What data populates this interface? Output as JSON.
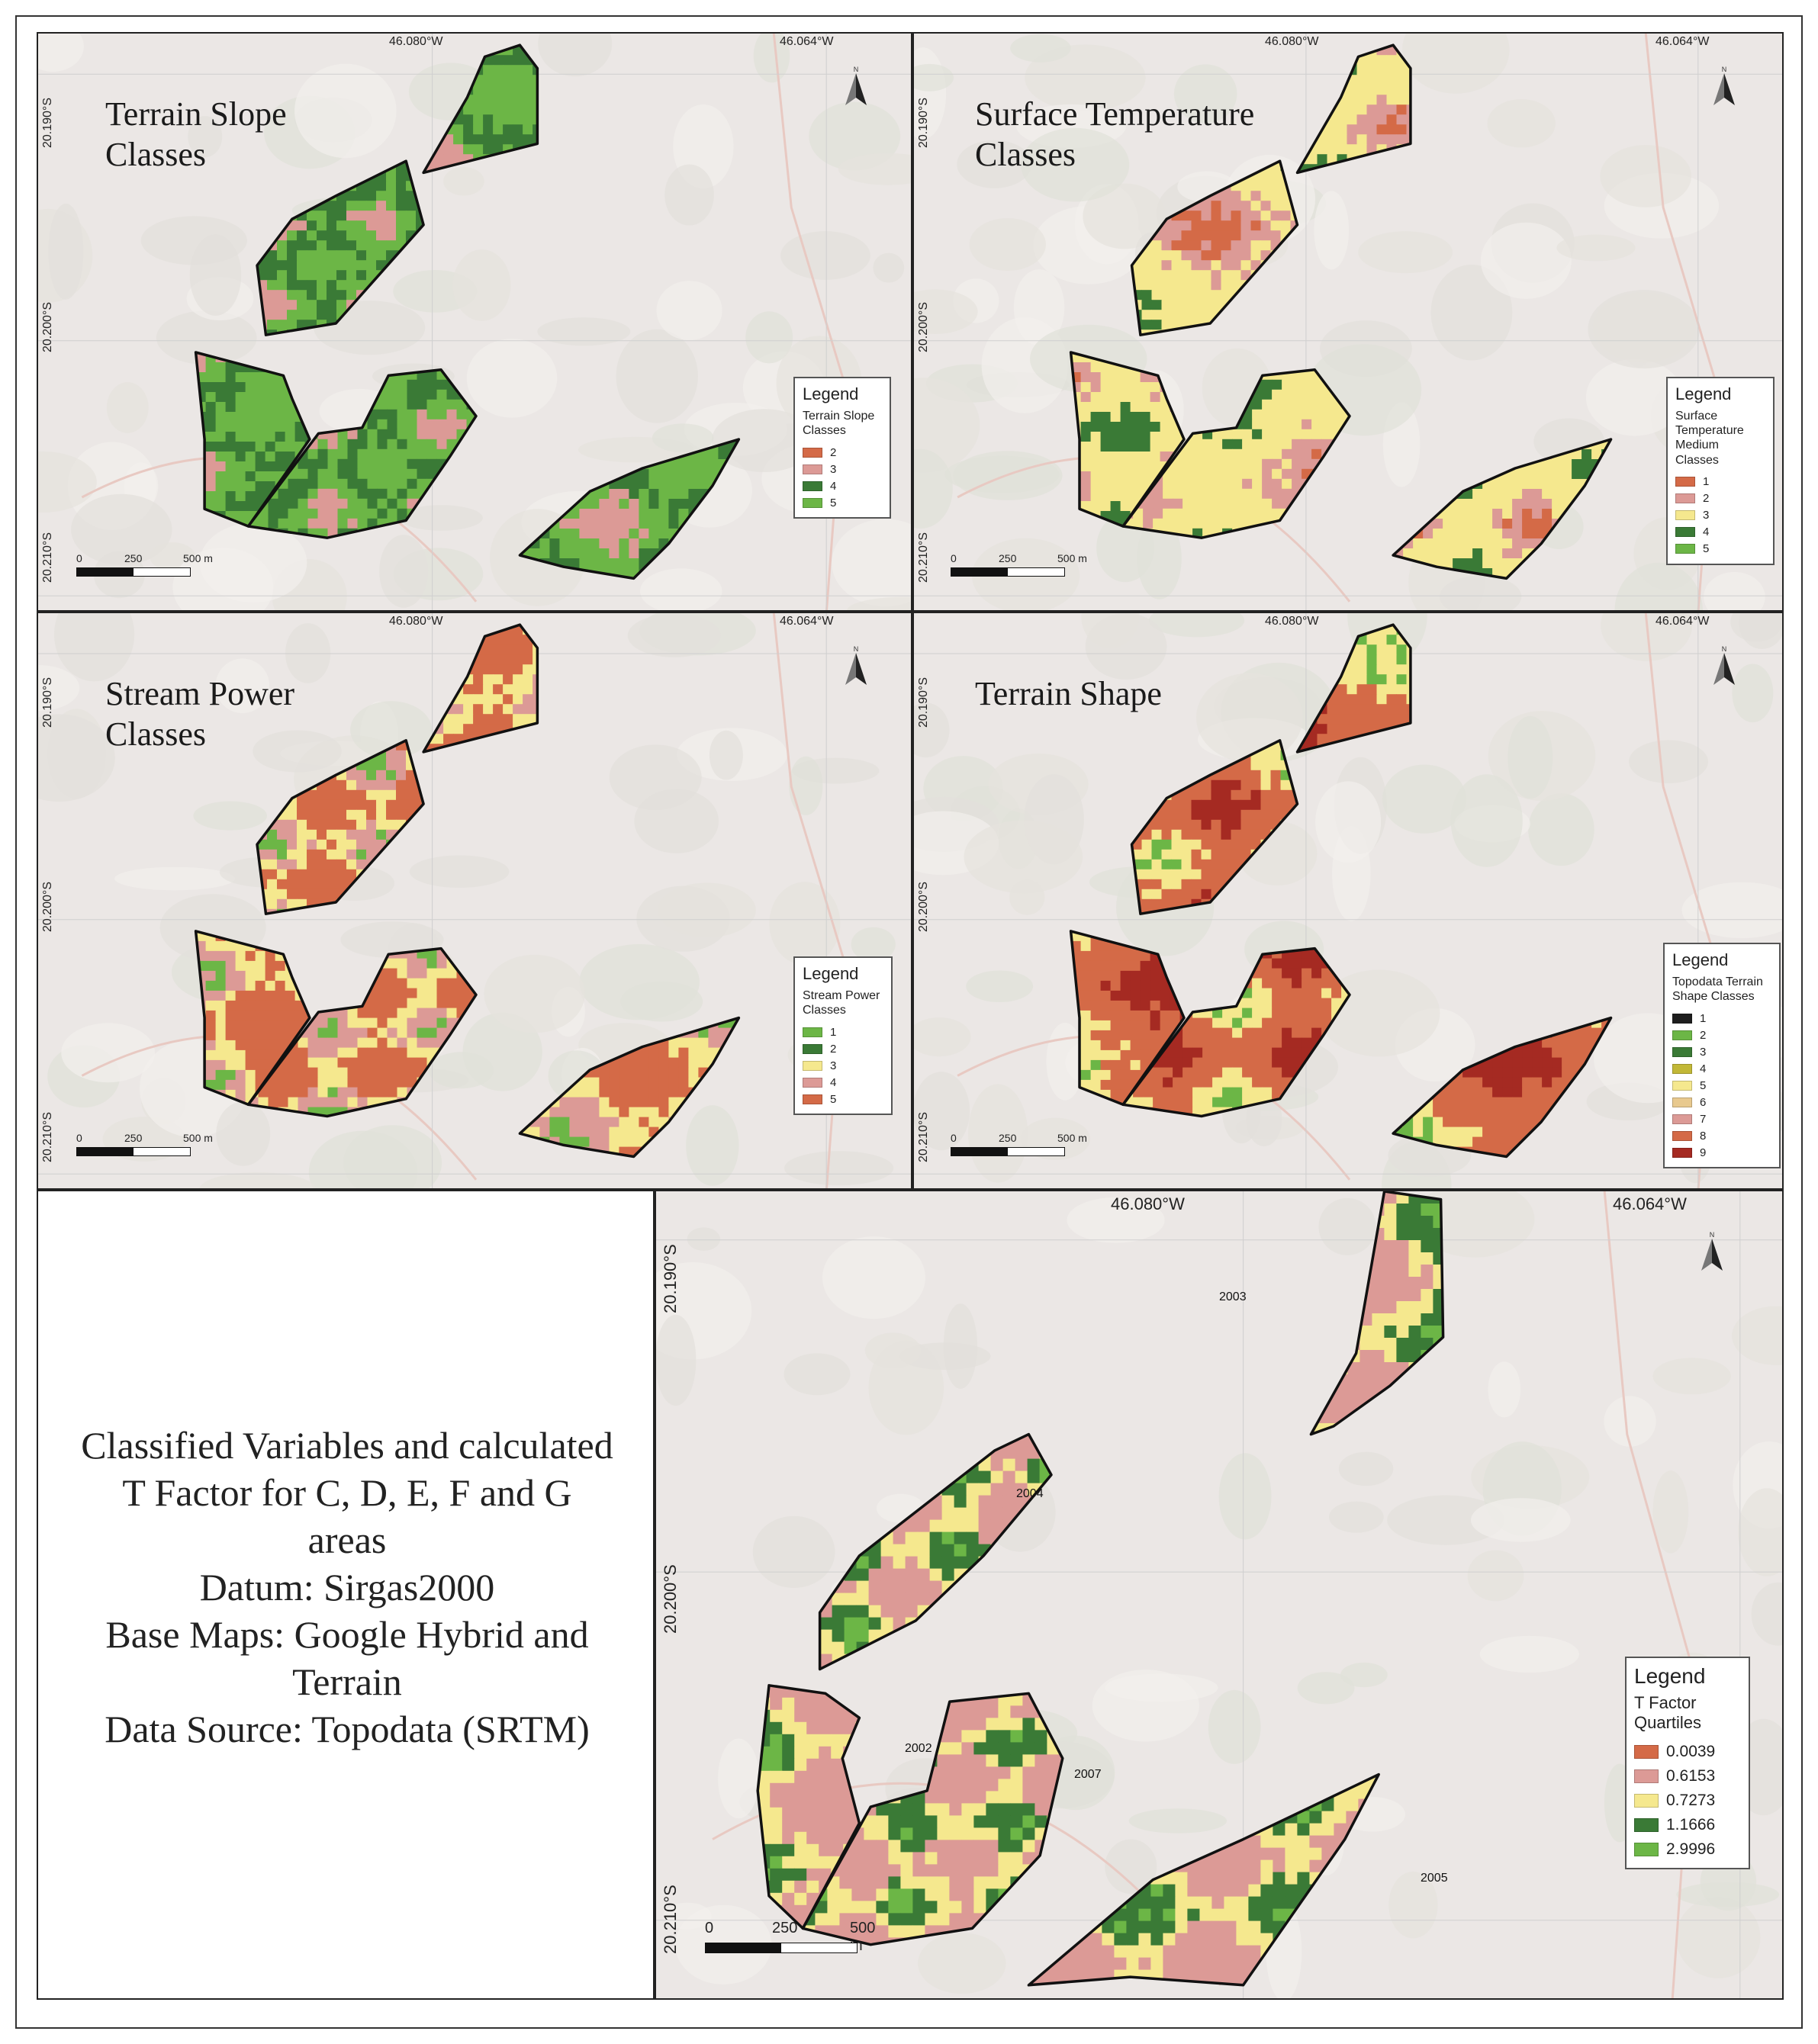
{
  "coords": {
    "lon_a": "46.080°W",
    "lon_b": "46.064°W",
    "lat_a": "20.190°S",
    "lat_b": "20.200°S",
    "lat_c": "20.210°S"
  },
  "north_label": "N",
  "scale": {
    "l0": "0",
    "l1": "250",
    "l2": "500 m"
  },
  "panels": [
    {
      "title": "Terrain Slope\nClasses",
      "legend": {
        "title": "Legend",
        "subtitle": "Terrain Slope\nClasses",
        "items": [
          {
            "label": "2",
            "color": "#d46a47"
          },
          {
            "label": "3",
            "color": "#dc9a96"
          },
          {
            "label": "4",
            "color": "#3a7a36"
          },
          {
            "label": "5",
            "color": "#6cb646"
          }
        ]
      }
    },
    {
      "title": "Surface Temperature\nClasses",
      "legend": {
        "title": "Legend",
        "subtitle": "Surface\nTemperature\nMedium Classes",
        "items": [
          {
            "label": "1",
            "color": "#d46a47"
          },
          {
            "label": "2",
            "color": "#dc9a96"
          },
          {
            "label": "3",
            "color": "#f5e88e"
          },
          {
            "label": "4",
            "color": "#3a7a36"
          },
          {
            "label": "5",
            "color": "#6cb646"
          }
        ]
      }
    },
    {
      "title": "Stream Power\nClasses",
      "legend": {
        "title": "Legend",
        "subtitle": "Stream Power\nClasses",
        "items": [
          {
            "label": "1",
            "color": "#6cb646"
          },
          {
            "label": "2",
            "color": "#3a7a36"
          },
          {
            "label": "3",
            "color": "#f5e88e"
          },
          {
            "label": "4",
            "color": "#dc9a96"
          },
          {
            "label": "5",
            "color": "#d46a47"
          }
        ]
      }
    },
    {
      "title": "Terrain Shape",
      "legend": {
        "title": "Legend",
        "subtitle": "Topodata Terrain\nShape Classes",
        "items": [
          {
            "label": "1",
            "color": "#1e1e1e"
          },
          {
            "label": "2",
            "color": "#6cb646"
          },
          {
            "label": "3",
            "color": "#3a7a36"
          },
          {
            "label": "4",
            "color": "#c2b837"
          },
          {
            "label": "5",
            "color": "#f5e88e"
          },
          {
            "label": "6",
            "color": "#e8c98e"
          },
          {
            "label": "7",
            "color": "#dc9a96"
          },
          {
            "label": "8",
            "color": "#d46a47"
          },
          {
            "label": "9",
            "color": "#a52a22"
          }
        ]
      }
    },
    {
      "title": "",
      "legend": {
        "title": "Legend",
        "subtitle": "T Factor\nQuartiles",
        "items": [
          {
            "label": "0.0039",
            "color": "#d46a47"
          },
          {
            "label": "0.6153",
            "color": "#dc9a96"
          },
          {
            "label": "0.7273",
            "color": "#f5e88e"
          },
          {
            "label": "1.1666",
            "color": "#3a7a36"
          },
          {
            "label": "2.9996",
            "color": "#6cb646"
          }
        ]
      }
    }
  ],
  "area_labels": [
    "2003",
    "2004",
    "2002",
    "2007",
    "2005"
  ],
  "info_lines": [
    "Classified Variables and calculated",
    "T Factor for C, D, E, F and G",
    "areas",
    "Datum: Sirgas2000",
    "Base Maps: Google Hybrid and",
    "Terrain",
    "Data Source: Topodata (SRTM)"
  ]
}
